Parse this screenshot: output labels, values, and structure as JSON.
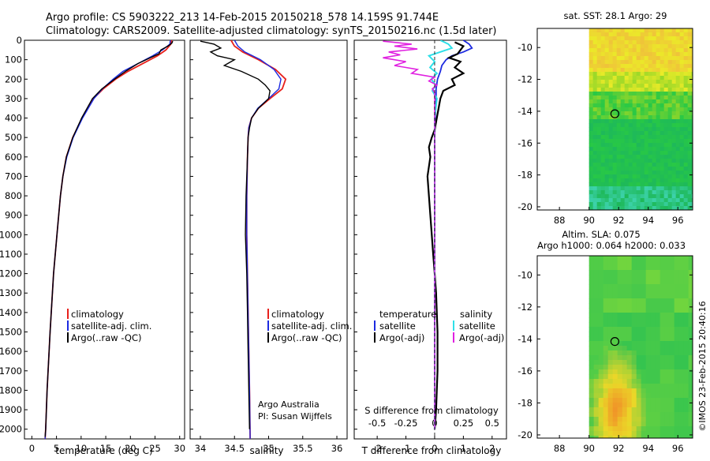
{
  "header": {
    "line1": "Argo profile: CS 5903222_213 14-Feb-2015 20150218_578 14.159S 91.744E",
    "line2": "Climatology: CARS2009. Satellite-adjusted climatology: synTS_20150216.nc (1.5d later)"
  },
  "colors": {
    "climatology": "#e8201c",
    "satellite": "#1c2ae0",
    "argo": "#000000",
    "sat_salinity": "#2ee0e8",
    "argo_adj_salinity": "#e020e0"
  },
  "chart_data": [
    {
      "type": "line",
      "id": "temperature",
      "xlabel": "temperature (deg C)",
      "ylabel": "",
      "xlim": [
        -1.5,
        31
      ],
      "ylim": [
        2050,
        0
      ],
      "xticks": [
        "0",
        "5",
        "10",
        "15",
        "20",
        "25",
        "30"
      ],
      "yticks": [
        "0",
        "100",
        "200",
        "300",
        "400",
        "500",
        "600",
        "700",
        "800",
        "900",
        "1000",
        "1100",
        "1200",
        "1300",
        "1400",
        "1500",
        "1600",
        "1700",
        "1800",
        "1900",
        "2000"
      ],
      "legend": [
        "climatology",
        "satellite-adj. clim.",
        "Argo(..raw -QC)"
      ],
      "legend_position": "lower-right",
      "series": [
        {
          "name": "climatology",
          "depth": [
            0,
            20,
            50,
            80,
            120,
            160,
            200,
            250,
            300,
            400,
            500,
            600,
            700,
            800,
            1000,
            1200,
            1500,
            1800,
            2000,
            2050
          ],
          "values": [
            28.4,
            28.2,
            27.2,
            25.5,
            22.5,
            19.5,
            17.0,
            14.5,
            12.5,
            10.2,
            8.3,
            7.0,
            6.3,
            5.8,
            5.1,
            4.4,
            3.7,
            3.1,
            2.8,
            2.7
          ]
        },
        {
          "name": "satellite-adj. clim.",
          "depth": [
            0,
            20,
            50,
            80,
            120,
            160,
            200,
            250,
            300,
            400,
            500,
            600,
            700,
            800,
            1000,
            1200,
            1500,
            1800,
            2000,
            2050
          ],
          "values": [
            28.1,
            28.0,
            26.5,
            24.5,
            21.5,
            18.5,
            16.5,
            14.3,
            12.6,
            10.3,
            8.4,
            7.1,
            6.3,
            5.8,
            5.1,
            4.4,
            3.7,
            3.1,
            2.8,
            2.7
          ]
        },
        {
          "name": "Argo(..raw -QC)",
          "depth": [
            5,
            15,
            30,
            50,
            70,
            90,
            120,
            160,
            200,
            250,
            300,
            400,
            500,
            600,
            700,
            800,
            1000,
            1200,
            1500,
            1800,
            2000,
            2040
          ],
          "values": [
            28.6,
            28.4,
            27.6,
            26.2,
            25.8,
            24.0,
            21.5,
            19.0,
            16.8,
            14.2,
            12.3,
            10.1,
            8.3,
            7.0,
            6.3,
            5.8,
            5.1,
            4.4,
            3.7,
            3.1,
            2.8,
            2.7
          ]
        }
      ]
    },
    {
      "type": "line",
      "id": "salinity",
      "xlabel": "salinity",
      "ylabel": "",
      "xlim": [
        33.85,
        36.15
      ],
      "ylim": [
        2050,
        0
      ],
      "xticks": [
        "34",
        "34.5",
        "35",
        "35.5",
        "36"
      ],
      "legend": [
        "climatology",
        "satellite-adj. clim.",
        "Argo(..raw -QC)"
      ],
      "legend_position": "lower-right",
      "annotation": [
        "Argo Australia",
        "PI: Susan Wijffels"
      ],
      "series": [
        {
          "name": "climatology",
          "depth": [
            0,
            30,
            60,
            100,
            150,
            200,
            250,
            300,
            350,
            400,
            450,
            500,
            600,
            800,
            1000,
            1400,
            1800,
            2050
          ],
          "values": [
            34.45,
            34.5,
            34.62,
            34.85,
            35.1,
            35.25,
            35.2,
            35.02,
            34.85,
            34.75,
            34.71,
            34.7,
            34.69,
            34.68,
            34.68,
            34.7,
            34.72,
            34.73
          ]
        },
        {
          "name": "satellite-adj. clim.",
          "depth": [
            0,
            30,
            60,
            100,
            150,
            200,
            250,
            300,
            350,
            400,
            450,
            500,
            600,
            800,
            1000,
            1400,
            1800,
            2050
          ],
          "values": [
            34.5,
            34.55,
            34.65,
            34.88,
            35.08,
            35.18,
            35.15,
            35.0,
            34.84,
            34.75,
            34.71,
            34.7,
            34.69,
            34.68,
            34.68,
            34.7,
            34.72,
            34.73
          ]
        },
        {
          "name": "Argo(..raw -QC)",
          "depth": [
            5,
            20,
            40,
            60,
            80,
            100,
            130,
            160,
            200,
            230,
            260,
            300,
            350,
            400,
            450,
            500,
            600,
            800,
            1000,
            1200,
            1400,
            1600,
            1800,
            2000
          ],
          "values": [
            34.0,
            34.2,
            34.3,
            34.15,
            34.25,
            34.5,
            34.35,
            34.6,
            34.85,
            34.95,
            35.02,
            35.0,
            34.85,
            34.75,
            34.72,
            34.7,
            34.69,
            34.67,
            34.66,
            34.68,
            34.69,
            34.7,
            34.71,
            34.72
          ]
        }
      ]
    },
    {
      "type": "line",
      "id": "difference",
      "xlabel": "T difference from climatology",
      "x2label": "S difference from climatology",
      "xlim": [
        -2.8,
        2.5
      ],
      "x2lim": [
        -0.7,
        0.625
      ],
      "ylim": [
        2050,
        0
      ],
      "xticks": [
        "-2",
        "-1",
        "0",
        "1",
        "2"
      ],
      "x2ticks": [
        "-0.5",
        "-0.25",
        "0",
        "0.25",
        "0.5"
      ],
      "legend_headers": [
        "temperature",
        "salinity"
      ],
      "legend": [
        "satellite",
        "Argo(-adj)",
        "satellite",
        "Argo(-adj)"
      ],
      "series": [
        {
          "name": "temperature satellite",
          "axis": "T",
          "depth": [
            0,
            20,
            40,
            60,
            80,
            100,
            130,
            160,
            200,
            250,
            300,
            400,
            500,
            700,
            1000,
            1500,
            2000
          ],
          "values": [
            1.0,
            1.2,
            1.3,
            1.0,
            0.6,
            0.4,
            0.25,
            0.2,
            0.1,
            0.05,
            0.05,
            0.02,
            0.0,
            0.0,
            0.0,
            0.0,
            0.0
          ]
        },
        {
          "name": "temperature Argo(-adj)",
          "axis": "T",
          "depth": [
            10,
            30,
            50,
            70,
            90,
            110,
            140,
            170,
            200,
            230,
            260,
            300,
            340,
            380,
            420,
            460,
            500,
            550,
            600,
            700,
            800,
            900,
            1000,
            1100,
            1200,
            1300,
            1500,
            1700,
            1900,
            2000
          ],
          "values": [
            0.7,
            1.0,
            0.9,
            0.8,
            0.5,
            0.9,
            0.7,
            1.0,
            0.6,
            0.7,
            0.3,
            0.2,
            0.15,
            0.1,
            0.05,
            0.0,
            -0.1,
            -0.2,
            -0.15,
            -0.25,
            -0.2,
            -0.15,
            -0.1,
            -0.05,
            0.0,
            0.05,
            0.1,
            0.1,
            0.05,
            0.0
          ]
        },
        {
          "name": "salinity satellite",
          "axis": "S",
          "depth": [
            0,
            20,
            40,
            60,
            80,
            110,
            140,
            170,
            200,
            230,
            260,
            300,
            350,
            400,
            500,
            700,
            1000,
            1500,
            2000
          ],
          "values": [
            0.05,
            0.12,
            0.15,
            0.05,
            -0.05,
            0.0,
            -0.04,
            0.02,
            -0.03,
            0.01,
            -0.02,
            0.02,
            0.01,
            0.0,
            0.0,
            0.0,
            0.0,
            0.0,
            0.0
          ]
        },
        {
          "name": "salinity Argo(-adj)",
          "axis": "S",
          "depth": [
            5,
            20,
            30,
            45,
            60,
            75,
            90,
            110,
            130,
            150,
            170,
            190,
            210,
            230,
            250,
            270,
            300,
            400,
            600,
            1000,
            1400,
            1800,
            2000
          ],
          "values": [
            -0.45,
            -0.2,
            -0.35,
            -0.15,
            -0.4,
            -0.3,
            -0.45,
            -0.25,
            -0.35,
            -0.15,
            -0.2,
            0.0,
            -0.05,
            0.02,
            -0.02,
            0.0,
            0.0,
            0.0,
            0.0,
            0.0,
            0.0,
            0.0,
            0.0
          ]
        }
      ]
    },
    {
      "type": "heatmap",
      "id": "sst_map",
      "title": "sat. SST: 28.1  Argo: 29",
      "xlim": [
        86.5,
        97
      ],
      "ylim": [
        -20.2,
        -8.8
      ],
      "xticks": [
        "88",
        "90",
        "92",
        "94",
        "96"
      ],
      "yticks": [
        "-10",
        "-12",
        "-14",
        "-16",
        "-18",
        "-20"
      ],
      "marker": {
        "lon": 91.744,
        "lat": -14.159
      },
      "data_start_lon": 90
    },
    {
      "type": "heatmap",
      "id": "sla_map",
      "title": "Altim. SLA: 0.075",
      "subtitle": "Argo h1000: 0.064 h2000: 0.033",
      "xlim": [
        86.5,
        97
      ],
      "ylim": [
        -20.2,
        -8.8
      ],
      "xticks": [
        "88",
        "90",
        "92",
        "94",
        "96"
      ],
      "yticks": [
        "-10",
        "-12",
        "-14",
        "-16",
        "-18",
        "-20"
      ],
      "marker": {
        "lon": 91.744,
        "lat": -14.159
      },
      "data_start_lon": 90
    }
  ],
  "credit": "©IMOS 23-Feb-2015 20:40:16"
}
